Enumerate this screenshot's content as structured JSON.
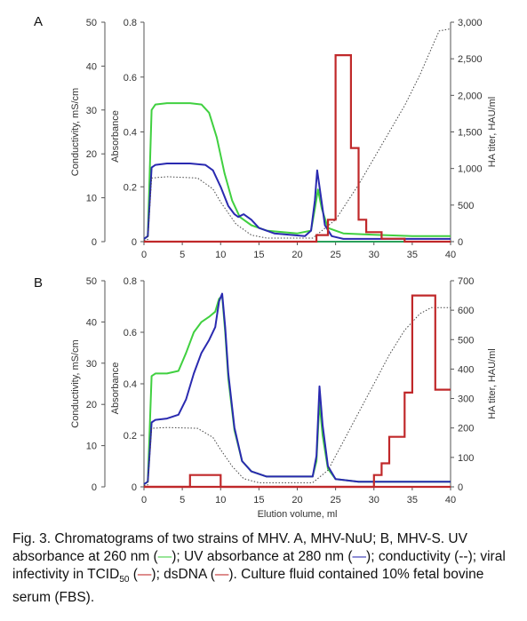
{
  "chart_data": [
    {
      "panel": "A",
      "type": "line",
      "xlim": [
        0,
        40
      ],
      "x_ticks": [
        "0",
        "5",
        "10",
        "15",
        "20",
        "25",
        "30",
        "35",
        "40"
      ],
      "axes": {
        "conductivity": {
          "label": "Conductivity, mS/cm",
          "ylim": [
            0,
            50
          ],
          "ticks": [
            "0",
            "10",
            "20",
            "30",
            "40",
            "50"
          ]
        },
        "absorbance": {
          "label": "Absorbance",
          "ylim": [
            0,
            0.8
          ],
          "ticks": [
            "0",
            "0.2",
            "0.4",
            "0.6",
            "0.8"
          ]
        },
        "ha_titer": {
          "label": "HA titer, HAU/ml",
          "ylim": [
            0,
            3000
          ],
          "ticks": [
            "0",
            "500",
            "1,000",
            "1,500",
            "2,000",
            "2,500",
            "3,000"
          ]
        }
      },
      "series": [
        {
          "key": "uv260",
          "axis": "absorbance",
          "color": "#40d040",
          "style": "solid",
          "points": [
            [
              0,
              0.01
            ],
            [
              0.5,
              0.02
            ],
            [
              1,
              0.48
            ],
            [
              1.5,
              0.5
            ],
            [
              3,
              0.505
            ],
            [
              6,
              0.505
            ],
            [
              7.5,
              0.5
            ],
            [
              8.5,
              0.47
            ],
            [
              9.5,
              0.38
            ],
            [
              10.5,
              0.25
            ],
            [
              11.5,
              0.15
            ],
            [
              12.5,
              0.09
            ],
            [
              14,
              0.06
            ],
            [
              16,
              0.04
            ],
            [
              20,
              0.03
            ],
            [
              21.8,
              0.04
            ],
            [
              22.3,
              0.12
            ],
            [
              22.7,
              0.19
            ],
            [
              23.2,
              0.12
            ],
            [
              24,
              0.05
            ],
            [
              26,
              0.03
            ],
            [
              30,
              0.025
            ],
            [
              35,
              0.02
            ],
            [
              40,
              0.02
            ]
          ]
        },
        {
          "key": "uv280",
          "axis": "absorbance",
          "color": "#2a2ab0",
          "style": "solid",
          "points": [
            [
              0,
              0.01
            ],
            [
              0.5,
              0.02
            ],
            [
              1,
              0.27
            ],
            [
              1.5,
              0.28
            ],
            [
              3,
              0.285
            ],
            [
              6,
              0.285
            ],
            [
              8,
              0.28
            ],
            [
              9,
              0.26
            ],
            [
              10,
              0.2
            ],
            [
              11,
              0.13
            ],
            [
              11.8,
              0.1
            ],
            [
              12.3,
              0.09
            ],
            [
              13,
              0.1
            ],
            [
              14,
              0.08
            ],
            [
              15,
              0.05
            ],
            [
              17,
              0.03
            ],
            [
              21,
              0.02
            ],
            [
              21.8,
              0.04
            ],
            [
              22.3,
              0.15
            ],
            [
              22.6,
              0.26
            ],
            [
              23,
              0.18
            ],
            [
              23.6,
              0.06
            ],
            [
              24.5,
              0.02
            ],
            [
              26,
              0.01
            ],
            [
              40,
              0.01
            ]
          ]
        },
        {
          "key": "conductivity",
          "axis": "conductivity",
          "color": "#444444",
          "style": "dotted",
          "points": [
            [
              0,
              0.3
            ],
            [
              0.5,
              0.5
            ],
            [
              1,
              14.5
            ],
            [
              3,
              14.8
            ],
            [
              7,
              14.5
            ],
            [
              9,
              12
            ],
            [
              10,
              9
            ],
            [
              12,
              4
            ],
            [
              14,
              1.5
            ],
            [
              16,
              0.8
            ],
            [
              22,
              0.8
            ],
            [
              25,
              5
            ],
            [
              28,
              13
            ],
            [
              31,
              22
            ],
            [
              34,
              31
            ],
            [
              36,
              38
            ],
            [
              37.5,
              44
            ],
            [
              38.5,
              48
            ],
            [
              40,
              48.5
            ]
          ]
        },
        {
          "key": "tcid50",
          "axis": "ha_titer",
          "color": "#2aa05a",
          "style": "solid",
          "points": [
            [
              0,
              0
            ],
            [
              40,
              0
            ]
          ]
        },
        {
          "key": "ha_titer",
          "axis": "ha_titer",
          "color": "#c0282a",
          "style": "step",
          "points": [
            [
              0,
              0
            ],
            [
              22.5,
              0
            ],
            [
              22.5,
              90
            ],
            [
              24,
              90
            ],
            [
              24,
              300
            ],
            [
              25,
              300
            ],
            [
              25,
              2550
            ],
            [
              27,
              2550
            ],
            [
              27,
              1280
            ],
            [
              28,
              1280
            ],
            [
              28,
              300
            ],
            [
              29,
              300
            ],
            [
              29,
              130
            ],
            [
              31,
              130
            ],
            [
              31,
              40
            ],
            [
              34,
              40
            ],
            [
              34,
              0
            ],
            [
              40,
              0
            ]
          ]
        }
      ]
    },
    {
      "panel": "B",
      "type": "line",
      "xlim": [
        0,
        40
      ],
      "x_ticks": [
        "0",
        "5",
        "10",
        "15",
        "20",
        "25",
        "30",
        "35",
        "40"
      ],
      "xlabel": "Elution volume, ml",
      "axes": {
        "conductivity": {
          "label": "Conductivity, mS/cm",
          "ylim": [
            0,
            50
          ],
          "ticks": [
            "0",
            "10",
            "20",
            "30",
            "40",
            "50"
          ]
        },
        "absorbance": {
          "label": "Absorbance",
          "ylim": [
            0,
            0.8
          ],
          "ticks": [
            "0",
            "0.2",
            "0.4",
            "0.6",
            "0.8"
          ]
        },
        "ha_titer": {
          "label": "HA titer, HAU/ml",
          "ylim": [
            0,
            700
          ],
          "ticks": [
            "0",
            "100",
            "200",
            "300",
            "400",
            "500",
            "600",
            "700"
          ]
        }
      },
      "series": [
        {
          "key": "uv260",
          "axis": "absorbance",
          "color": "#40d040",
          "style": "solid",
          "points": [
            [
              0,
              0.01
            ],
            [
              0.5,
              0.02
            ],
            [
              1,
              0.43
            ],
            [
              1.5,
              0.44
            ],
            [
              3,
              0.44
            ],
            [
              4.5,
              0.45
            ],
            [
              5.5,
              0.52
            ],
            [
              6.5,
              0.6
            ],
            [
              7.5,
              0.64
            ],
            [
              8.5,
              0.66
            ],
            [
              9.3,
              0.68
            ],
            [
              9.8,
              0.73
            ],
            [
              10.2,
              0.74
            ],
            [
              10.6,
              0.6
            ],
            [
              11,
              0.42
            ],
            [
              11.8,
              0.22
            ],
            [
              12.8,
              0.1
            ],
            [
              14,
              0.06
            ],
            [
              16,
              0.04
            ],
            [
              22,
              0.04
            ],
            [
              22.5,
              0.1
            ],
            [
              22.9,
              0.33
            ],
            [
              23.3,
              0.2
            ],
            [
              24,
              0.07
            ],
            [
              25,
              0.03
            ],
            [
              28,
              0.02
            ],
            [
              40,
              0.02
            ]
          ]
        },
        {
          "key": "uv280",
          "axis": "absorbance",
          "color": "#2a2ab0",
          "style": "solid",
          "points": [
            [
              0,
              0.01
            ],
            [
              0.5,
              0.02
            ],
            [
              1,
              0.25
            ],
            [
              1.5,
              0.26
            ],
            [
              3,
              0.265
            ],
            [
              4.5,
              0.28
            ],
            [
              5.5,
              0.34
            ],
            [
              6.5,
              0.44
            ],
            [
              7.5,
              0.52
            ],
            [
              8.5,
              0.57
            ],
            [
              9.3,
              0.62
            ],
            [
              9.8,
              0.72
            ],
            [
              10.2,
              0.75
            ],
            [
              10.6,
              0.62
            ],
            [
              11,
              0.44
            ],
            [
              11.8,
              0.23
            ],
            [
              12.8,
              0.1
            ],
            [
              14,
              0.06
            ],
            [
              16,
              0.04
            ],
            [
              22,
              0.04
            ],
            [
              22.5,
              0.12
            ],
            [
              22.9,
              0.39
            ],
            [
              23.3,
              0.24
            ],
            [
              24,
              0.08
            ],
            [
              25,
              0.03
            ],
            [
              28,
              0.02
            ],
            [
              40,
              0.02
            ]
          ]
        },
        {
          "key": "conductivity",
          "axis": "conductivity",
          "color": "#444444",
          "style": "dotted",
          "points": [
            [
              0,
              0.3
            ],
            [
              0.5,
              0.5
            ],
            [
              1,
              14.2
            ],
            [
              3,
              14.4
            ],
            [
              7,
              14.2
            ],
            [
              9,
              12
            ],
            [
              10,
              9
            ],
            [
              11.5,
              5
            ],
            [
              13,
              2
            ],
            [
              15,
              1
            ],
            [
              22,
              1
            ],
            [
              24,
              4
            ],
            [
              26,
              11
            ],
            [
              28,
              18
            ],
            [
              30,
              25
            ],
            [
              32,
              32
            ],
            [
              34,
              38
            ],
            [
              36,
              42
            ],
            [
              37.5,
              43.5
            ],
            [
              40,
              43.5
            ]
          ]
        },
        {
          "key": "tcid50",
          "axis": "ha_titer",
          "color": "#2aa05a",
          "style": "solid",
          "points": [
            [
              0,
              0
            ],
            [
              40,
              0
            ]
          ]
        },
        {
          "key": "dsdna",
          "axis": "ha_titer",
          "color": "#c0282a",
          "style": "step",
          "points": [
            [
              0,
              0
            ],
            [
              6,
              0
            ],
            [
              6,
              40
            ],
            [
              10,
              40
            ],
            [
              10,
              0
            ],
            [
              40,
              0
            ]
          ]
        },
        {
          "key": "ha_titer",
          "axis": "ha_titer",
          "color": "#c0282a",
          "style": "step",
          "points": [
            [
              0,
              0
            ],
            [
              30,
              0
            ],
            [
              30,
              40
            ],
            [
              31,
              40
            ],
            [
              31,
              80
            ],
            [
              32,
              80
            ],
            [
              32,
              170
            ],
            [
              34,
              170
            ],
            [
              34,
              320
            ],
            [
              35,
              320
            ],
            [
              35,
              650
            ],
            [
              38,
              650
            ],
            [
              38,
              330
            ],
            [
              40,
              330
            ]
          ]
        }
      ]
    }
  ],
  "caption": {
    "p1": "Fig. 3. Chromatograms of two strains of MHV. A, MHV-NuU; B, MHV-S. UV absorbance at 260 nm (",
    "dash": "—",
    "p2": "); UV absorbance at 280 nm (",
    "p3": "); conductivity (--); viral infectivity in TCID",
    "sub": "50",
    "p4": " (",
    "p5": "); dsDNA (",
    "p6": "). Culture fluid contained 10% fetal bovine serum (FBS)."
  }
}
